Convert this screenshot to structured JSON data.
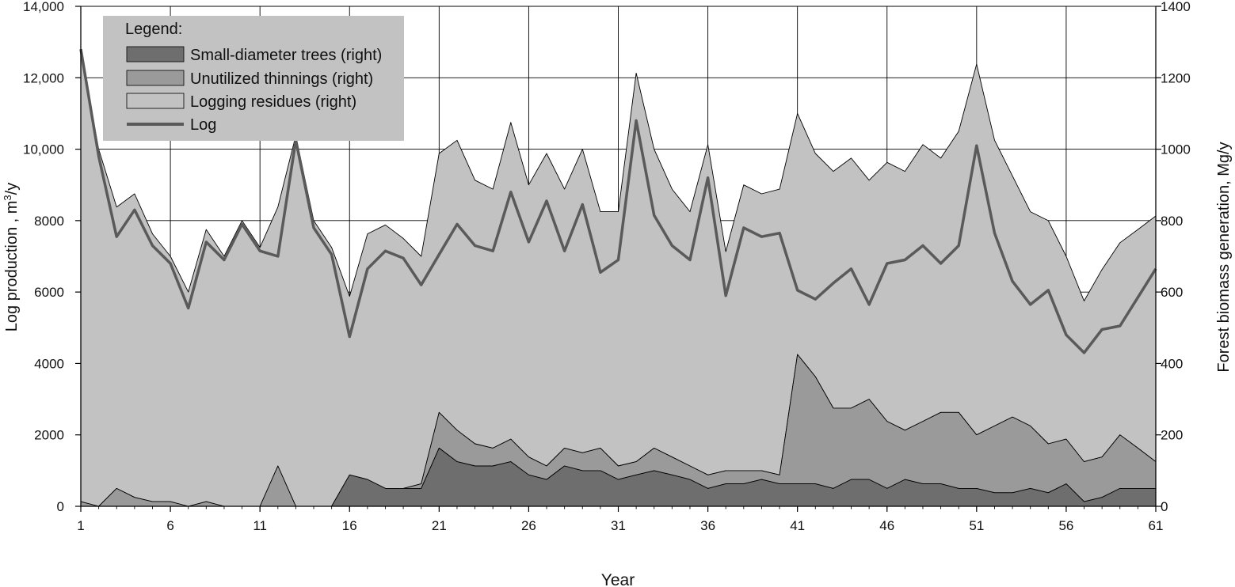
{
  "chart_data": {
    "type": "area",
    "title": "",
    "xlabel": "Year",
    "ylabel": "Log production , m³/y",
    "ylabel_prefix": "Log production , m",
    "ylabel_sup": "3",
    "ylabel_suffix": "/y",
    "y2label": "Forest biomass generation, Mg/y",
    "xlim": [
      1,
      61
    ],
    "ylim": [
      0,
      14000
    ],
    "y2lim": [
      0,
      1400
    ],
    "x_ticks": [
      "1",
      "6",
      "11",
      "16",
      "21",
      "26",
      "31",
      "36",
      "41",
      "46",
      "51",
      "56",
      "61"
    ],
    "y_ticks": [
      "0",
      "2000",
      "4000",
      "6000",
      "8000",
      "10,000",
      "12,000",
      "14,000"
    ],
    "y2_ticks": [
      "0",
      "200",
      "400",
      "600",
      "800",
      "1000",
      "1200",
      "1400"
    ],
    "grid": "major gridlines, hidden behind filled areas",
    "legend_title": "Legend:",
    "legend_position": "top-left",
    "colors": {
      "small_diameter": "#6e6e6e",
      "unutilized": "#9a9a9a",
      "residues": "#c2c2c2",
      "log_line": "#5a5a5a",
      "grid": "#000000"
    },
    "x": [
      1,
      2,
      3,
      4,
      5,
      6,
      7,
      8,
      9,
      10,
      11,
      12,
      13,
      14,
      15,
      16,
      17,
      18,
      19,
      20,
      21,
      22,
      23,
      24,
      25,
      26,
      27,
      28,
      29,
      30,
      31,
      32,
      33,
      34,
      35,
      36,
      37,
      38,
      39,
      40,
      41,
      42,
      43,
      44,
      45,
      46,
      47,
      48,
      49,
      50,
      51,
      52,
      53,
      54,
      55,
      56,
      57,
      58,
      59,
      60,
      61
    ],
    "series": [
      {
        "name": "Small-diameter trees (right)",
        "axis": "right",
        "kind": "stacked-area",
        "values": [
          0,
          0,
          0,
          0,
          0,
          0,
          0,
          0,
          0,
          0,
          0,
          0,
          0,
          0,
          0,
          88,
          75,
          50,
          50,
          50,
          163,
          125,
          113,
          113,
          125,
          88,
          75,
          113,
          100,
          100,
          75,
          88,
          100,
          88,
          75,
          50,
          63,
          63,
          75,
          63,
          63,
          63,
          50,
          75,
          75,
          50,
          75,
          63,
          63,
          50,
          50,
          38,
          38,
          50,
          38,
          63,
          13,
          25,
          50,
          50,
          50
        ]
      },
      {
        "name": "Unutilized thinnings (right)",
        "axis": "right",
        "kind": "stacked-area",
        "cumulative_top": [
          13,
          0,
          50,
          25,
          13,
          13,
          0,
          13,
          0,
          0,
          0,
          113,
          0,
          0,
          0,
          88,
          75,
          50,
          50,
          63,
          263,
          213,
          175,
          163,
          188,
          138,
          113,
          163,
          150,
          163,
          113,
          125,
          163,
          138,
          113,
          88,
          100,
          100,
          100,
          88,
          425,
          363,
          275,
          275,
          300,
          238,
          213,
          238,
          263,
          263,
          200,
          225,
          250,
          225,
          175,
          188,
          125,
          138,
          200,
          163,
          125
        ]
      },
      {
        "name": "Logging residues (right)",
        "axis": "right",
        "kind": "stacked-area",
        "cumulative_top": [
          1275,
          1000,
          838,
          875,
          763,
          700,
          600,
          775,
          700,
          800,
          725,
          838,
          1038,
          800,
          725,
          588,
          763,
          788,
          750,
          700,
          988,
          1025,
          913,
          888,
          1075,
          900,
          988,
          888,
          1000,
          825,
          825,
          1213,
          1000,
          888,
          825,
          1013,
          713,
          900,
          875,
          888,
          1100,
          988,
          938,
          975,
          913,
          963,
          938,
          1013,
          975,
          1050,
          1238,
          1025,
          925,
          825,
          800,
          700,
          575,
          663,
          738,
          775,
          813
        ]
      },
      {
        "name": "Log",
        "axis": "left",
        "kind": "line",
        "values": [
          12800,
          9800,
          7550,
          8300,
          7300,
          6800,
          5550,
          7400,
          6900,
          7900,
          7150,
          7000,
          10250,
          7800,
          7050,
          4750,
          6650,
          7150,
          6950,
          6200,
          7050,
          7900,
          7300,
          7150,
          8800,
          7400,
          8550,
          7150,
          8450,
          6550,
          6900,
          10800,
          8150,
          7300,
          6900,
          9200,
          5900,
          7800,
          7550,
          7650,
          6050,
          5800,
          6250,
          6650,
          5650,
          6800,
          6900,
          7300,
          6800,
          7300,
          10100,
          7650,
          6300,
          5650,
          6050,
          4800,
          4300,
          4950,
          5050,
          5850,
          6650
        ]
      }
    ]
  }
}
